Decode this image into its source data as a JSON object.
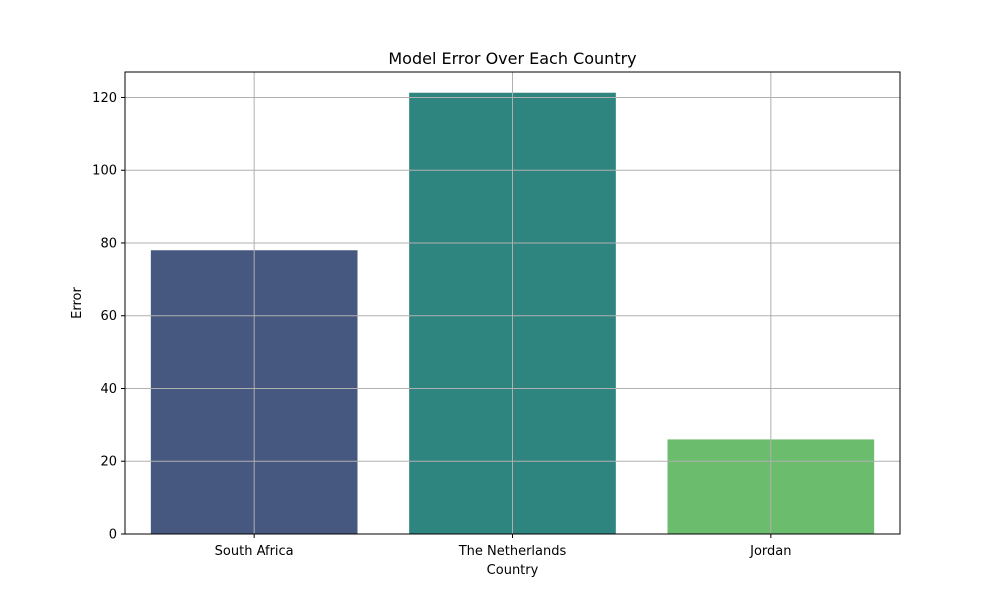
{
  "chart_data": {
    "type": "bar",
    "title": "Model Error Over Each Country",
    "xlabel": "Country",
    "ylabel": "Error",
    "categories": [
      "South Africa",
      "The Netherlands",
      "Jordan"
    ],
    "values": [
      78,
      121.3,
      26
    ],
    "colors": [
      "#46587f",
      "#2e8580",
      "#6bbd6d"
    ],
    "ylim": [
      0,
      127
    ],
    "yticks": [
      0,
      20,
      40,
      60,
      80,
      100,
      120
    ],
    "grid": true,
    "legend": "none"
  }
}
